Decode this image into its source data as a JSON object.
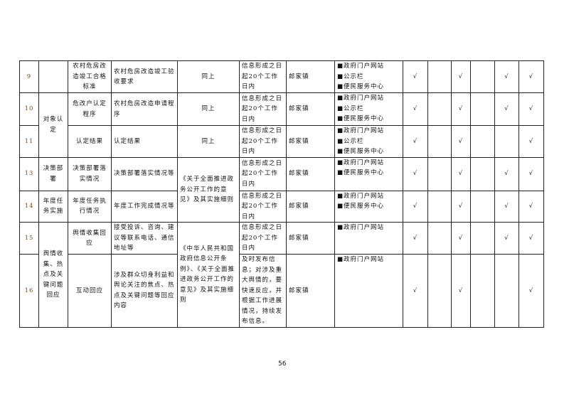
{
  "rows": [
    {
      "no": "9",
      "category": "",
      "item": "农村危房改造竣工合格标准",
      "content": "农村危房改造竣工验收要求",
      "basis": "同上",
      "time": "信息形成之日起20个工作日内",
      "subject": "郎家镇",
      "channels": [
        "■政府门户网站",
        "■公示栏",
        "■便民服务中心"
      ],
      "checks": [
        "√",
        "",
        "√",
        "",
        "√",
        "√"
      ]
    },
    {
      "no": "10",
      "category": "对象认定",
      "item": "危改户认定程序",
      "content": "农村危房改造申请程序",
      "basis": "同上",
      "time": "信息形成之日起20个工作日内",
      "subject": "郎家镇",
      "channels": [
        "■政府门户网站",
        "■公示栏",
        "■便民服务中心"
      ],
      "checks": [
        "√",
        "",
        "√",
        "",
        "√",
        "√"
      ]
    },
    {
      "no": "11",
      "item": "认定结果",
      "content": "认定结果",
      "basis": "同上",
      "time": "信息形成之日起20个工作日内",
      "subject": "郎家镇",
      "channels": [
        "■政府门户网站",
        "■公示栏",
        "■便民服务中心"
      ],
      "checks": [
        "√",
        "",
        "√",
        "",
        "",
        "√"
      ]
    },
    {
      "no": "13",
      "category": "决策部署",
      "item": "决策部署落实情况",
      "content": "决策部署落实情况等",
      "basis": "《关于全面推进政务公开工作的意见》及其实施细则",
      "time": "信息形成之日起20个工作日内",
      "subject": "郎家镇",
      "channels": [
        "■政府门户网站",
        "■便民服务中心"
      ],
      "checks": [
        "√",
        "",
        "√",
        "",
        "√",
        "√"
      ]
    },
    {
      "no": "14",
      "category": "年度任务实施",
      "item": "年度任务执行情况",
      "content": "年度工作完成情况等",
      "time": "信息形成之日起20个工作日内",
      "subject": "郎家镇",
      "channels": [
        "■政府门户网站",
        "■便民服务中心"
      ],
      "checks": [
        "√",
        "",
        "√",
        "",
        "√",
        "√"
      ]
    },
    {
      "no": "15",
      "category": "舆情收集、热点及关键问题回应",
      "item": "舆情收集回应",
      "content": "接受投诉、咨询、建议等联系电话、通信地址等",
      "basis": "《中华人民共和国政府信息公开条例》、《关于全面推进政务公开工作的意见》及其实施细则",
      "time": "信息形成之日起20个工作日内",
      "subject": "郎家镇",
      "channels": [
        "■政府门户网站"
      ],
      "checks": [
        "√",
        "",
        "√",
        "",
        "√",
        "√"
      ]
    },
    {
      "no": "16",
      "item": "互动回应",
      "content": "涉及群众切身利益和舆论关注的焦点、热点及关键问题等回应内容",
      "time": "及时发布信息；对涉及重大舆情的，要快速反应，并根据工作进展情况，持续发布信息。",
      "subject": "郎家镇",
      "channels": [
        "■政府门户网站"
      ],
      "checks": [
        "√",
        "",
        "√",
        "",
        "",
        "√"
      ]
    }
  ],
  "page_number": "56"
}
